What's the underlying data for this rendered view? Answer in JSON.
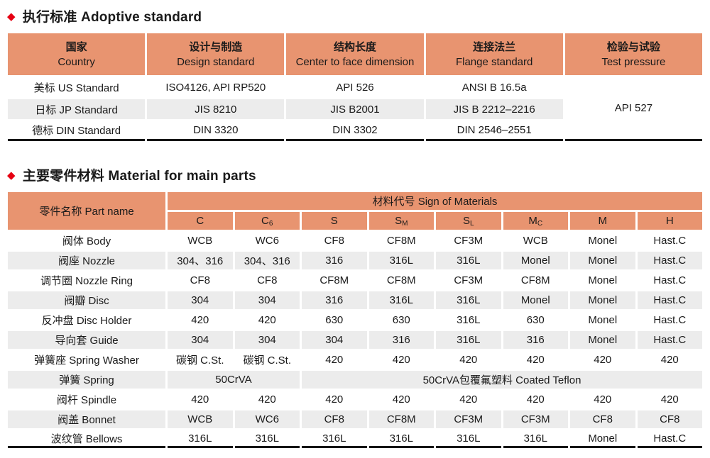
{
  "page": {
    "colors": {
      "accent_red": "#e60012",
      "header_orange": "#e89470",
      "row_shade_gray": "#ececec",
      "text": "#1a1a1a"
    },
    "bullet_icon": "diamond"
  },
  "section1": {
    "title": "执行标准 Adoptive standard",
    "table": {
      "columns": [
        {
          "zh": "国家",
          "en": "Country"
        },
        {
          "zh": "设计与制造",
          "en": "Design standard"
        },
        {
          "zh": "结构长度",
          "en": "Center to face dimension"
        },
        {
          "zh": "连接法兰",
          "en": "Flange standard"
        },
        {
          "zh": "检验与试验",
          "en": "Test pressure"
        }
      ],
      "rows": [
        {
          "shaded": false,
          "cells": [
            {
              "text": "美标 US Standard"
            },
            {
              "text": "ISO4126, API RP520"
            },
            {
              "text": "API 526"
            },
            {
              "text": "ANSI B 16.5a"
            },
            {
              "text": "API 527",
              "rowspan": 3
            }
          ]
        },
        {
          "shaded": true,
          "cells": [
            {
              "text": "日标 JP Standard"
            },
            {
              "text": "JIS 8210"
            },
            {
              "text": "JIS B2001"
            },
            {
              "text": "JIS B 2212–2216"
            }
          ]
        },
        {
          "shaded": false,
          "cells": [
            {
              "text": "德标 DIN Standard"
            },
            {
              "text": "DIN 3320"
            },
            {
              "text": "DIN 3302"
            },
            {
              "text": "DIN 2546–2551"
            }
          ]
        }
      ]
    }
  },
  "section2": {
    "title": "主要零件材料 Material for main parts",
    "table": {
      "part_name_header": "零件名称 Part name",
      "group_header": "材料代号 Sign of Materials",
      "material_codes": [
        {
          "main": "C",
          "sub": ""
        },
        {
          "main": "C",
          "sub": "6"
        },
        {
          "main": "S",
          "sub": ""
        },
        {
          "main": "S",
          "sub": "M"
        },
        {
          "main": "S",
          "sub": "L"
        },
        {
          "main": "M",
          "sub": "C"
        },
        {
          "main": "M",
          "sub": ""
        },
        {
          "main": "H",
          "sub": ""
        }
      ],
      "rows": [
        {
          "shaded": false,
          "name": "阀体 Body",
          "cells": [
            {
              "text": "WCB"
            },
            {
              "text": "WC6"
            },
            {
              "text": "CF8"
            },
            {
              "text": "CF8M"
            },
            {
              "text": "CF3M"
            },
            {
              "text": "WCB"
            },
            {
              "text": "Monel"
            },
            {
              "text": "Hast.C"
            }
          ]
        },
        {
          "shaded": true,
          "name": "阀座 Nozzle",
          "cells": [
            {
              "text": "304、316"
            },
            {
              "text": "304、316"
            },
            {
              "text": "316"
            },
            {
              "text": "316L"
            },
            {
              "text": "316L"
            },
            {
              "text": "Monel"
            },
            {
              "text": "Monel"
            },
            {
              "text": "Hast.C"
            }
          ]
        },
        {
          "shaded": false,
          "name": "调节圈 Nozzle Ring",
          "cells": [
            {
              "text": "CF8"
            },
            {
              "text": "CF8"
            },
            {
              "text": "CF8M"
            },
            {
              "text": "CF8M"
            },
            {
              "text": "CF3M"
            },
            {
              "text": "CF8M"
            },
            {
              "text": "Monel"
            },
            {
              "text": "Hast.C"
            }
          ]
        },
        {
          "shaded": true,
          "name": "阀瓣 Disc",
          "cells": [
            {
              "text": "304"
            },
            {
              "text": "304"
            },
            {
              "text": "316"
            },
            {
              "text": "316L"
            },
            {
              "text": "316L"
            },
            {
              "text": "Monel"
            },
            {
              "text": "Monel"
            },
            {
              "text": "Hast.C"
            }
          ]
        },
        {
          "shaded": false,
          "name": "反冲盘 Disc Holder",
          "cells": [
            {
              "text": "420"
            },
            {
              "text": "420"
            },
            {
              "text": "630"
            },
            {
              "text": "630"
            },
            {
              "text": "316L"
            },
            {
              "text": "630"
            },
            {
              "text": "Monel"
            },
            {
              "text": "Hast.C"
            }
          ]
        },
        {
          "shaded": true,
          "name": "导向套 Guide",
          "cells": [
            {
              "text": "304"
            },
            {
              "text": "304"
            },
            {
              "text": "304"
            },
            {
              "text": "316"
            },
            {
              "text": "316L"
            },
            {
              "text": "316"
            },
            {
              "text": "Monel"
            },
            {
              "text": "Hast.C"
            }
          ]
        },
        {
          "shaded": false,
          "name": "弹簧座 Spring Washer",
          "cells": [
            {
              "text": "碳钢 C.St."
            },
            {
              "text": "碳钢 C.St."
            },
            {
              "text": "420"
            },
            {
              "text": "420"
            },
            {
              "text": "420"
            },
            {
              "text": "420"
            },
            {
              "text": "420"
            },
            {
              "text": "420"
            }
          ]
        },
        {
          "shaded": true,
          "name": "弹簧 Spring",
          "cells": [
            {
              "text": "50CrVA",
              "colspan": 2
            },
            {
              "text": "50CrVA包覆氟塑料 Coated Teflon",
              "colspan": 6
            }
          ]
        },
        {
          "shaded": false,
          "name": "阀杆 Spindle",
          "cells": [
            {
              "text": "420"
            },
            {
              "text": "420"
            },
            {
              "text": "420"
            },
            {
              "text": "420"
            },
            {
              "text": "420"
            },
            {
              "text": "420"
            },
            {
              "text": "420"
            },
            {
              "text": "420"
            }
          ]
        },
        {
          "shaded": true,
          "name": "阀盖 Bonnet",
          "cells": [
            {
              "text": "WCB"
            },
            {
              "text": "WC6"
            },
            {
              "text": "CF8"
            },
            {
              "text": "CF8M"
            },
            {
              "text": "CF3M"
            },
            {
              "text": "CF3M"
            },
            {
              "text": "CF8"
            },
            {
              "text": "CF8"
            }
          ]
        },
        {
          "shaded": false,
          "name": "波纹管 Bellows",
          "cells": [
            {
              "text": "316L"
            },
            {
              "text": "316L"
            },
            {
              "text": "316L"
            },
            {
              "text": "316L"
            },
            {
              "text": "316L"
            },
            {
              "text": "316L"
            },
            {
              "text": "Monel"
            },
            {
              "text": "Hast.C"
            }
          ]
        }
      ]
    }
  }
}
